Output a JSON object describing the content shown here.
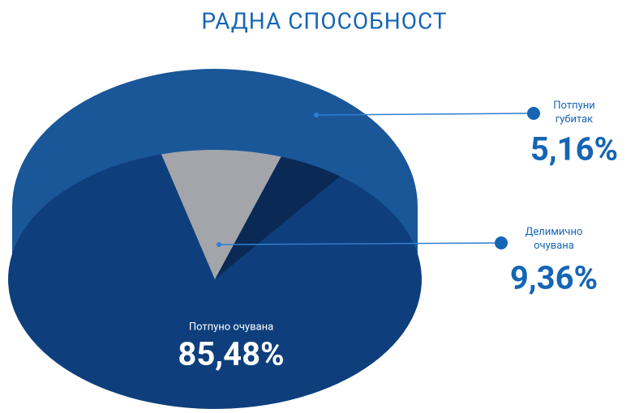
{
  "chart_data": {
    "type": "pie",
    "title": "РАДНА СПОСОБНОСТ",
    "categories": [
      "Потпуно очувана",
      "Делимично очувана",
      "Потпуни губитак"
    ],
    "values": [
      85.48,
      9.36,
      5.16
    ],
    "value_labels": [
      "85,48%",
      "9,36%",
      "5,16%"
    ],
    "colors": [
      "#0e3f7c",
      "#a3a5aa",
      "#0a2a55"
    ]
  }
}
